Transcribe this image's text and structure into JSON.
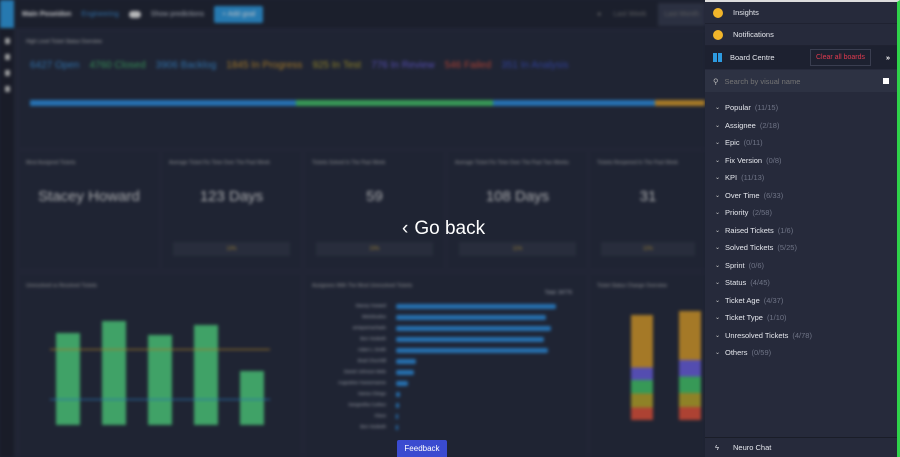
{
  "topbar": {
    "title": "Main Poseidon",
    "team": "Engineering",
    "toggle": "Show predictions",
    "add_goal": "+ Add goal",
    "last_week": "Last Week",
    "last_month": "Last Month"
  },
  "overview": {
    "title": "High Level Ticket Status Overview",
    "stats": [
      {
        "label": "6427 Open",
        "color": "#3a8fd9"
      },
      {
        "label": "4760 Closed",
        "color": "#43b86a"
      },
      {
        "label": "3906 Backlog",
        "color": "#3a8fd9"
      },
      {
        "label": "1845 In Progress",
        "color": "#d69a2a"
      },
      {
        "label": "925 In Test",
        "color": "#b9a62a"
      },
      {
        "label": "776 In Review",
        "color": "#6a5fe0"
      },
      {
        "label": "546 Failed",
        "color": "#e0503a"
      },
      {
        "label": "351 In Analysis",
        "color": "#3a4fc0"
      }
    ]
  },
  "cards": [
    {
      "title": "Most Assigned Tickets",
      "value": "Stacey Howard"
    },
    {
      "title": "Average Ticket Fix Time Over The Past Week",
      "value": "123 Days",
      "pct": "13%"
    },
    {
      "title": "Tickets Solved In The Past Week",
      "value": "59",
      "pct": "23%"
    },
    {
      "title": "Average Ticket Fix Time Over The Past Two Weeks",
      "value": "108 Days",
      "pct": "11%"
    },
    {
      "title": "Tickets Reopened In The Past Week",
      "value": "31",
      "pct": "12%"
    }
  ],
  "charts": [
    "Unresolved vs Resolved Tickets",
    "Assignees With The Most Unresolved Tickets",
    "Ticket Status Change Overview"
  ],
  "assignees": {
    "total": "Total: 34776",
    "names": [
      "Stacey Howard",
      "Weirdoudou",
      "amiquemachado",
      "Ben Hesketh",
      "Adam L Smith",
      "Brad Churchill",
      "Daniel Johnson Mele",
      "Augustine Huesemanne",
      "Vanna Chingo",
      "Sangeetha Curbeo",
      "Klaus",
      "Ben Hesketh"
    ]
  },
  "overlay": {
    "go_back": "Go back",
    "feedback": "Feedback"
  },
  "panel": {
    "insights": "Insights",
    "notifications": "Notifications",
    "board_centre": "Board Centre",
    "clear_all": "Clear all boards",
    "search_placeholder": "Search by visual name",
    "categories": [
      {
        "name": "Popular",
        "count": "(11/15)"
      },
      {
        "name": "Assignee",
        "count": "(2/18)"
      },
      {
        "name": "Epic",
        "count": "(0/11)"
      },
      {
        "name": "Fix Version",
        "count": "(0/8)"
      },
      {
        "name": "KPI",
        "count": "(11/13)"
      },
      {
        "name": "Over Time",
        "count": "(6/33)"
      },
      {
        "name": "Priority",
        "count": "(2/58)"
      },
      {
        "name": "Raised Tickets",
        "count": "(1/6)"
      },
      {
        "name": "Solved Tickets",
        "count": "(5/25)"
      },
      {
        "name": "Sprint",
        "count": "(0/6)"
      },
      {
        "name": "Status",
        "count": "(4/45)"
      },
      {
        "name": "Ticket Age",
        "count": "(4/37)"
      },
      {
        "name": "Ticket Type",
        "count": "(1/10)"
      },
      {
        "name": "Unresolved Tickets",
        "count": "(4/78)"
      },
      {
        "name": "Others",
        "count": "(0/59)"
      }
    ],
    "neuro_chat": "Neuro Chat"
  },
  "colors": {
    "accent": "#2d9ae0",
    "clear": "#e03a4f",
    "green": "#4fd07f"
  }
}
